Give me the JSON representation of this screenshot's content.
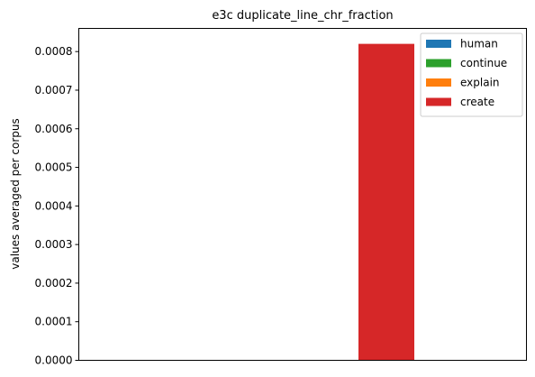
{
  "chart_data": {
    "type": "bar",
    "title": "e3c duplicate_line_chr_fraction",
    "xlabel": "",
    "ylabel": "values averaged per corpus",
    "ylim": [
      0,
      0.00086
    ],
    "yticks": [
      "0.0000",
      "0.0001",
      "0.0002",
      "0.0003",
      "0.0004",
      "0.0005",
      "0.0006",
      "0.0007",
      "0.0008"
    ],
    "categories": [
      ""
    ],
    "series": [
      {
        "name": "human",
        "color": "#1f77b4",
        "values": [
          0
        ]
      },
      {
        "name": "continue",
        "color": "#2ca02c",
        "values": [
          0
        ]
      },
      {
        "name": "explain",
        "color": "#ff7f0e",
        "values": [
          0
        ]
      },
      {
        "name": "create",
        "color": "#d62728",
        "values": [
          0.00082
        ]
      }
    ],
    "grid": false,
    "legend_position": "top-right"
  }
}
